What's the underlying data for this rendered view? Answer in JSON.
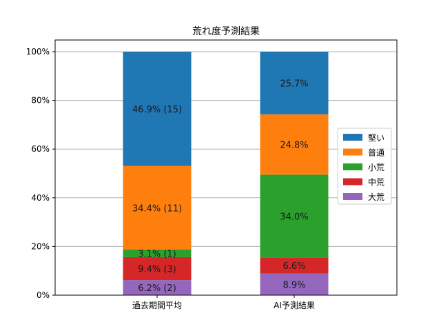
{
  "chart_data": {
    "type": "bar",
    "stacked": true,
    "title": "荒れ度予測結果",
    "categories": [
      "過去期間平均",
      "AI予測結果"
    ],
    "ylim": [
      0,
      100
    ],
    "yticks": [
      "0%",
      "20%",
      "40%",
      "60%",
      "80%",
      "100%"
    ],
    "grid": "y",
    "legend_position": "right",
    "series": [
      {
        "name": "大荒",
        "color": "#9467bd",
        "values": [
          6.2,
          8.9
        ],
        "labels": [
          "6.2% (2)",
          "8.9%"
        ]
      },
      {
        "name": "中荒",
        "color": "#d62728",
        "values": [
          9.4,
          6.6
        ],
        "labels": [
          "9.4% (3)",
          "6.6%"
        ]
      },
      {
        "name": "小荒",
        "color": "#2ca02c",
        "values": [
          3.1,
          34.0
        ],
        "labels": [
          "3.1% (1)",
          "34.0%"
        ]
      },
      {
        "name": "普通",
        "color": "#ff7f0e",
        "values": [
          34.4,
          24.8
        ],
        "labels": [
          "34.4% (11)",
          "24.8%"
        ]
      },
      {
        "name": "堅い",
        "color": "#1f77b4",
        "values": [
          46.9,
          25.7
        ],
        "labels": [
          "46.9% (15)",
          "25.7%"
        ]
      }
    ]
  }
}
